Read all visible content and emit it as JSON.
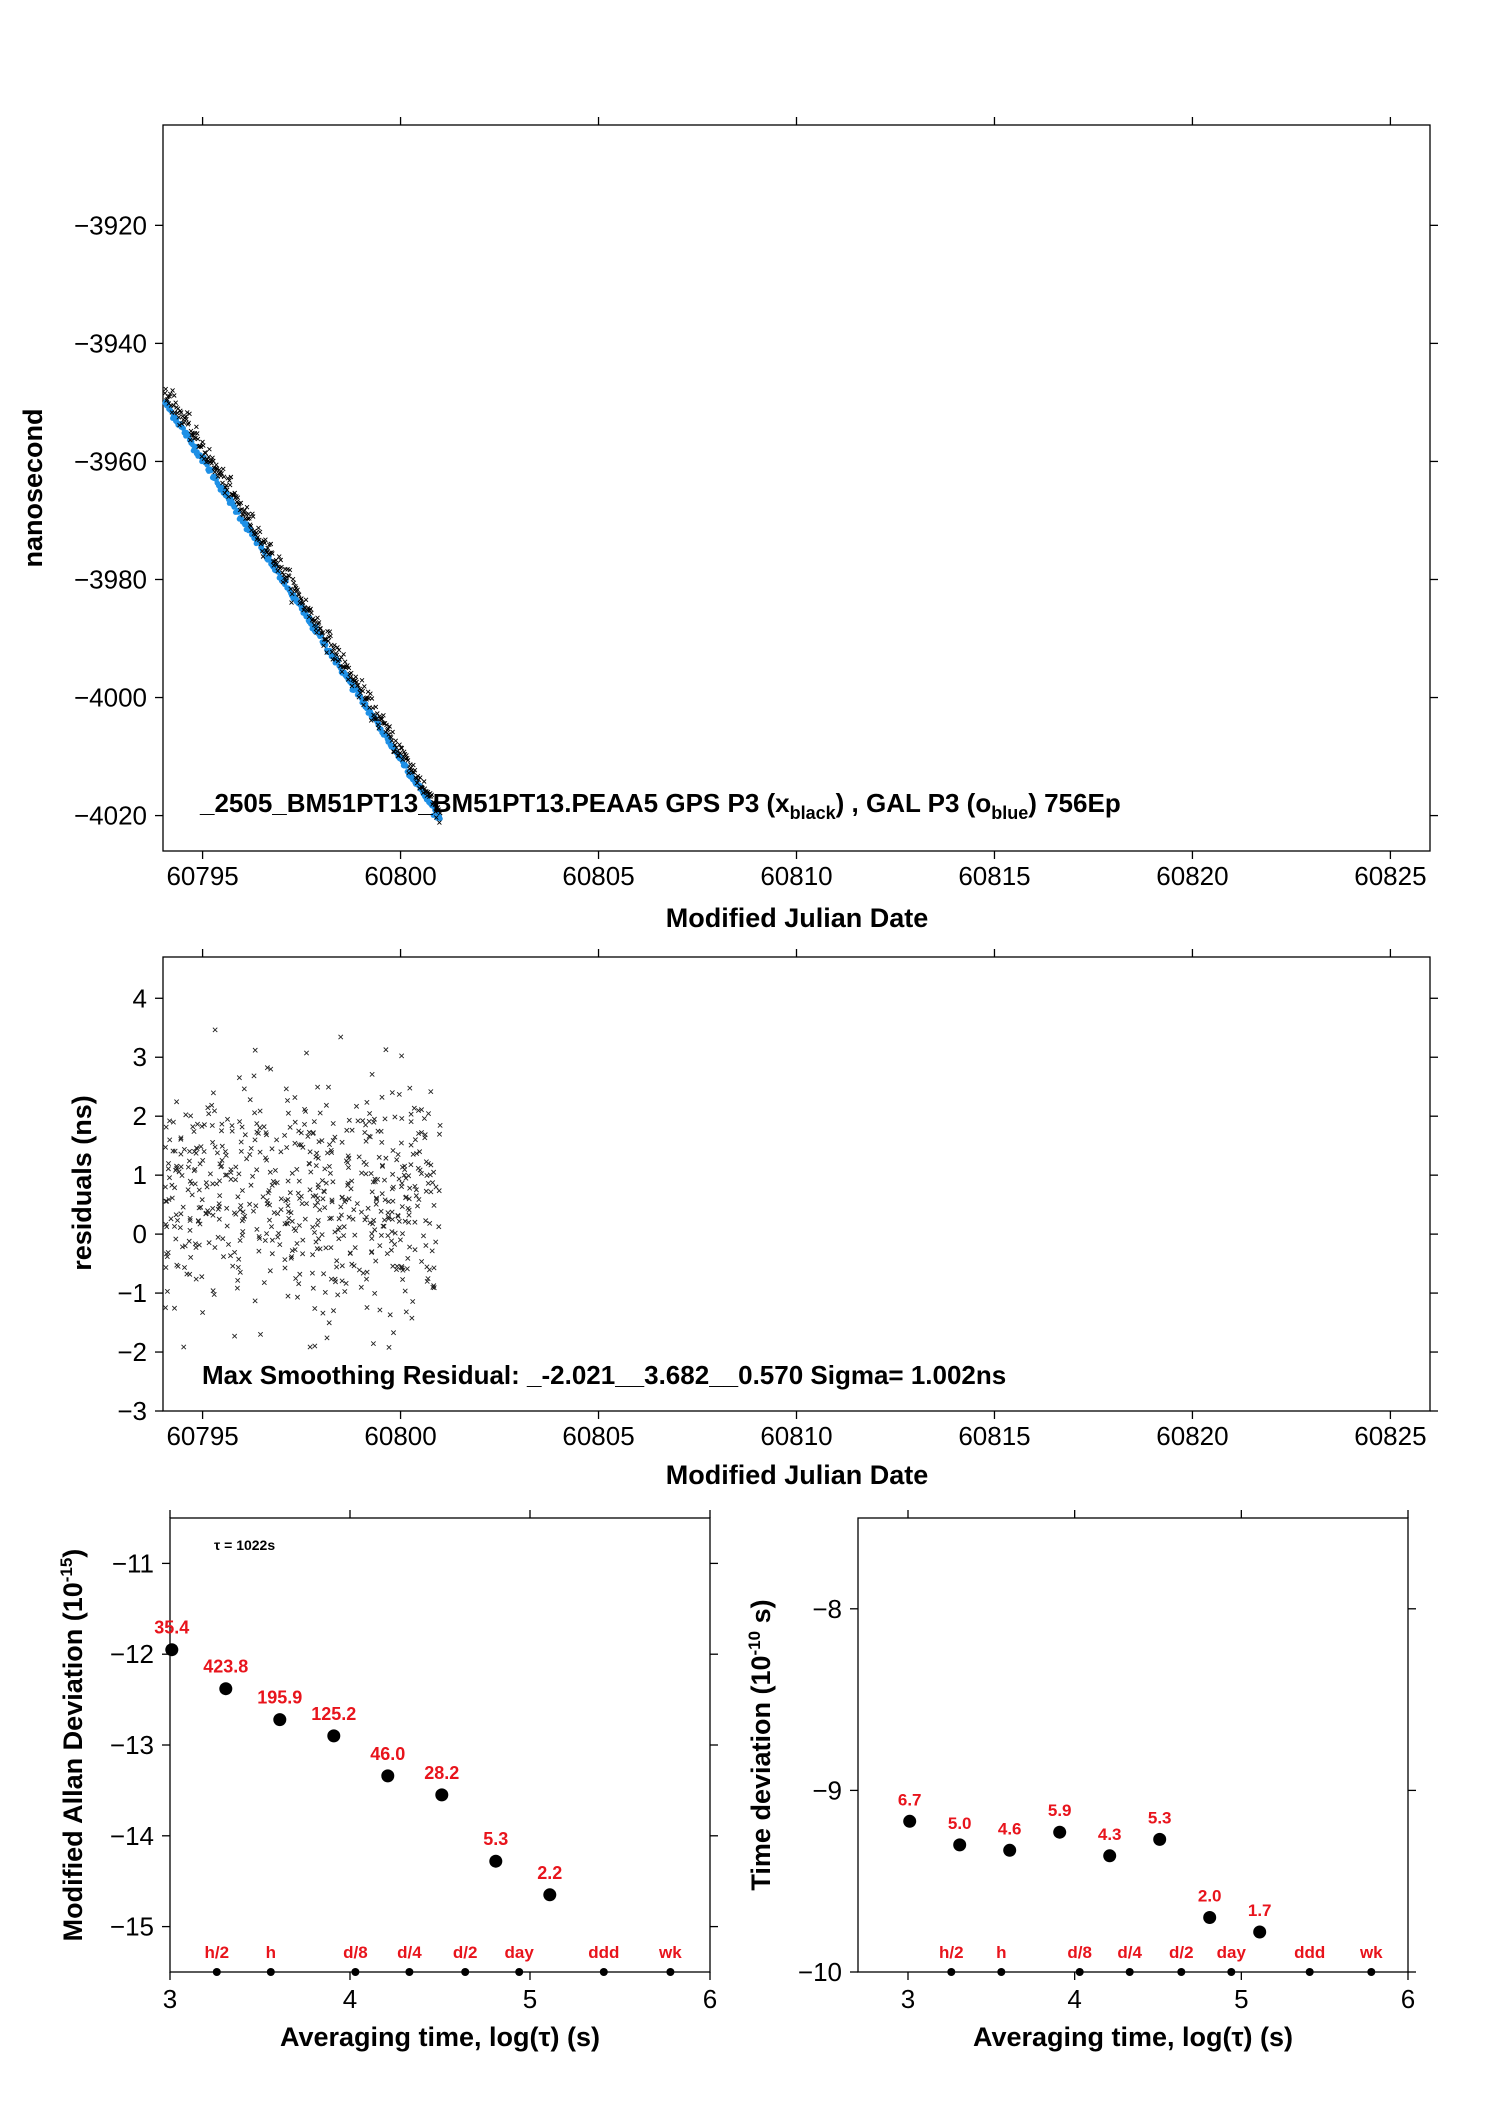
{
  "colors": {
    "gps": "#000000",
    "gal": "#1e90e6",
    "labels": "#e8141c"
  },
  "panels": {
    "top": {
      "ylabel": "nanosecond",
      "xlabel": "Modified Julian Date",
      "annotation": "_2505_BM51PT13_BM51PT13.PEAA5     GPS P3 (x",
      "annotation_sub1": "black",
      "annotation_mid": ") ,  GAL P3 (o",
      "annotation_sub2": "blue",
      "annotation_end": ")  756Ep"
    },
    "middle": {
      "ylabel": "residuals (ns)",
      "xlabel": "Modified Julian Date",
      "annotation": "Max Smoothing Residual: _-2.021__3.682__0.570  Sigma= 1.002ns"
    },
    "bottom_left": {
      "ylabel_main": "Modified Allan Deviation (10",
      "ylabel_sup": "-15",
      "ylabel_end": ")",
      "xlabel": "Averaging time, log(τ) (s)",
      "tau_note": "τ = 1022s"
    },
    "bottom_right": {
      "ylabel_main": "Time deviation (10",
      "ylabel_sup": "-10",
      "ylabel_end": " s)",
      "xlabel": "Averaging time, log(τ) (s)"
    }
  },
  "chart_data": [
    {
      "id": "time_series",
      "type": "scatter",
      "ylabel": "nanosecond",
      "xlabel": "Modified Julian Date",
      "xlim": [
        60794,
        60826
      ],
      "ylim": [
        -4026,
        -3903
      ],
      "xticks": [
        60795,
        60800,
        60805,
        60810,
        60815,
        60820,
        60825
      ],
      "yticks": [
        -3920,
        -3940,
        -3960,
        -3980,
        -4000,
        -4020
      ],
      "x_range": [
        60794.05,
        60801.0
      ],
      "series": [
        {
          "name": "GPS P3",
          "marker": "x",
          "color": "#000000",
          "trend_start": -3948.0,
          "trend_end": -4019.5,
          "count": 756
        },
        {
          "name": "GAL P3",
          "marker": "o",
          "color": "#1e90e6",
          "trend_start": -3950.0,
          "trend_end": -4020.5
        }
      ]
    },
    {
      "id": "residuals",
      "type": "scatter",
      "ylabel": "residuals (ns)",
      "xlabel": "Modified Julian Date",
      "xlim": [
        60794,
        60826
      ],
      "ylim": [
        -3.0,
        4.7
      ],
      "xticks": [
        60795,
        60800,
        60805,
        60810,
        60815,
        60820,
        60825
      ],
      "yticks": [
        4,
        3,
        2,
        1,
        0,
        -1,
        -2,
        -3
      ],
      "x_range": [
        60794.05,
        60801.0
      ],
      "stats": {
        "min": -2.021,
        "max": 3.682,
        "mean": 0.57,
        "sigma": 1.002
      }
    },
    {
      "id": "allan_deviation",
      "type": "scatter",
      "ylabel": "Modified Allan Deviation (10^-15)",
      "xlabel": "Averaging time, log(τ) (s)",
      "xlim": [
        3,
        6
      ],
      "ylim": [
        -15.5,
        -10.5
      ],
      "xticks": [
        3,
        4,
        5,
        6
      ],
      "yticks": [
        -11,
        -12,
        -13,
        -14,
        -15
      ],
      "x": [
        3.01,
        3.31,
        3.61,
        3.91,
        4.21,
        4.51,
        4.81,
        5.11
      ],
      "y": [
        -11.95,
        -12.38,
        -12.72,
        -12.9,
        -13.34,
        -13.55,
        -14.28,
        -14.65
      ],
      "labels": [
        "35.4",
        "423.8",
        "195.9",
        "125.2",
        "46.0",
        "28.2",
        "5.3",
        "2.2"
      ],
      "markers": [
        {
          "label": "h/2",
          "x": 3.26
        },
        {
          "label": "h",
          "x": 3.56
        },
        {
          "label": "d/8",
          "x": 4.03
        },
        {
          "label": "d/4",
          "x": 4.33
        },
        {
          "label": "d/2",
          "x": 4.64
        },
        {
          "label": "day",
          "x": 4.94
        },
        {
          "label": "ddd",
          "x": 5.41
        },
        {
          "label": "wk",
          "x": 5.78
        }
      ]
    },
    {
      "id": "time_deviation",
      "type": "scatter",
      "ylabel": "Time deviation (10^-10 s)",
      "xlabel": "Averaging time, log(τ) (s)",
      "xlim": [
        2.7,
        6
      ],
      "ylim": [
        -10,
        -7.5
      ],
      "xticks": [
        3,
        4,
        5,
        6
      ],
      "yticks": [
        -8,
        -9,
        -10
      ],
      "x": [
        3.01,
        3.31,
        3.61,
        3.91,
        4.21,
        4.51,
        4.81,
        5.11
      ],
      "y": [
        -9.17,
        -9.3,
        -9.33,
        -9.23,
        -9.36,
        -9.27,
        -9.7,
        -9.78
      ],
      "labels": [
        "6.7",
        "5.0",
        "4.6",
        "5.9",
        "4.3",
        "5.3",
        "2.0",
        "1.7"
      ],
      "markers": [
        {
          "label": "h/2",
          "x": 3.26
        },
        {
          "label": "h",
          "x": 3.56
        },
        {
          "label": "d/8",
          "x": 4.03
        },
        {
          "label": "d/4",
          "x": 4.33
        },
        {
          "label": "d/2",
          "x": 4.64
        },
        {
          "label": "day",
          "x": 4.94
        },
        {
          "label": "ddd",
          "x": 5.41
        },
        {
          "label": "wk",
          "x": 5.78
        }
      ]
    }
  ]
}
